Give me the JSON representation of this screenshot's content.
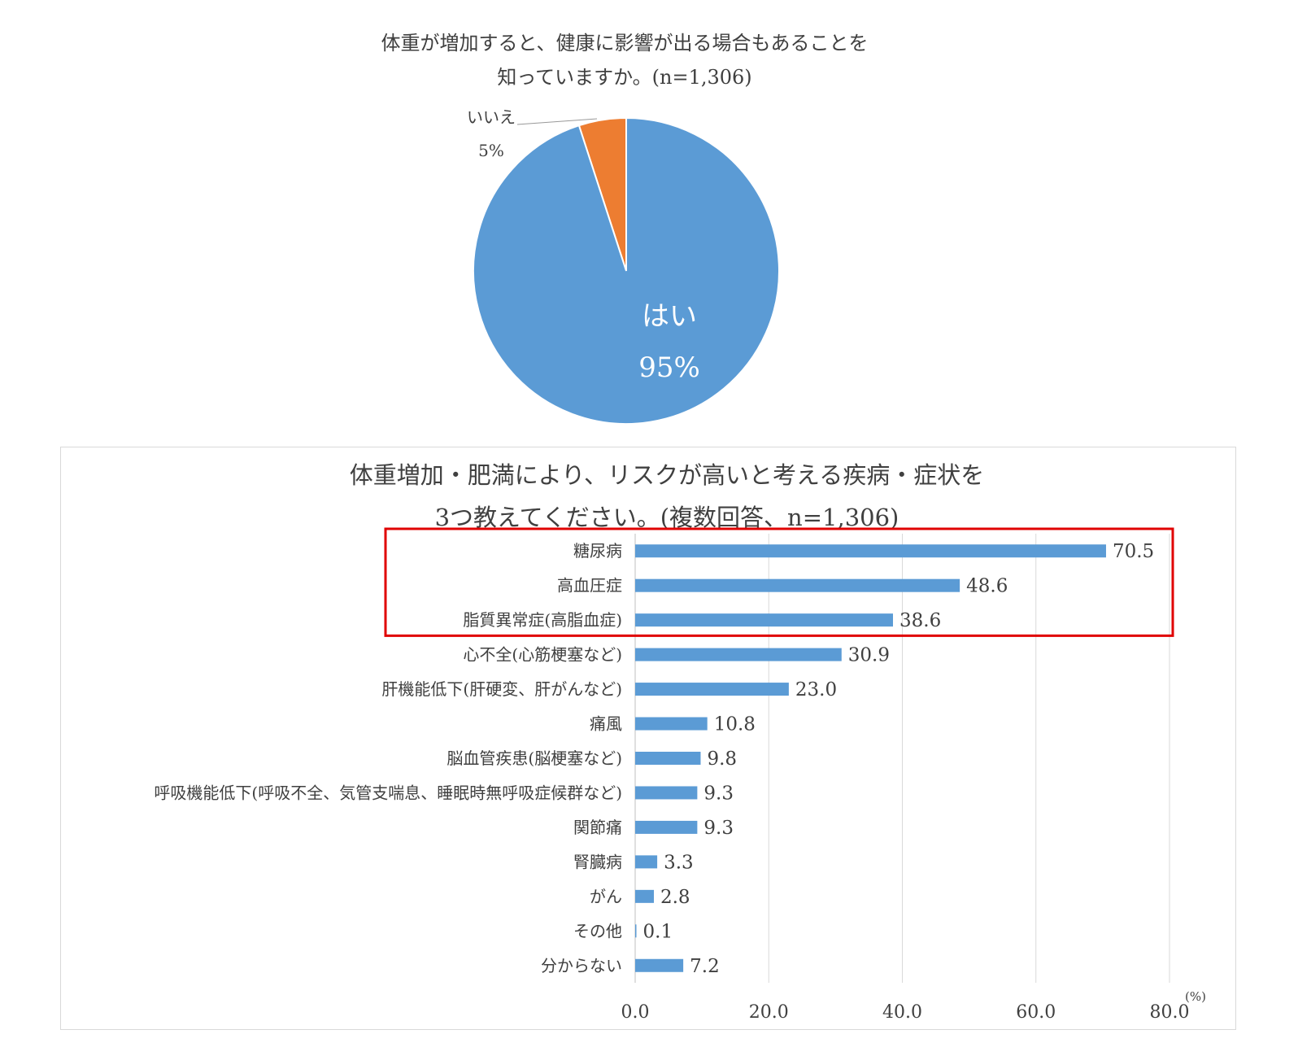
{
  "chart_data": [
    {
      "type": "pie",
      "title": [
        "体重が増加すると、健康に影響が出る場合もあることを",
        "知っていますか。(n=1,306)"
      ],
      "slices": [
        {
          "label": "はい",
          "value": 95,
          "value_label": "95%",
          "color": "#5b9bd5"
        },
        {
          "label": "いいえ",
          "value": 5,
          "value_label": "5%",
          "color": "#ed7d31"
        }
      ]
    },
    {
      "type": "bar",
      "orientation": "horizontal",
      "title": [
        "体重増加・肥満により、リスクが高いと考える疾病・症状を",
        "3つ教えてください。(複数回答、n=1,306)"
      ],
      "categories": [
        "糖尿病",
        "高血圧症",
        "脂質異常症(高脂血症)",
        "心不全(心筋梗塞など)",
        "肝機能低下(肝硬変、肝がんなど)",
        "痛風",
        "脳血管疾患(脳梗塞など)",
        "呼吸機能低下(呼吸不全、気管支喘息、睡眠時無呼吸症候群など)",
        "関節痛",
        "腎臓病",
        "がん",
        "その他",
        "分からない"
      ],
      "values": [
        70.5,
        48.6,
        38.6,
        30.9,
        23.0,
        10.8,
        9.8,
        9.3,
        9.3,
        3.3,
        2.8,
        0.1,
        7.2
      ],
      "value_labels": [
        "70.5",
        "48.6",
        "38.6",
        "30.9",
        "23.0",
        "10.8",
        "9.8",
        "9.3",
        "9.3",
        "3.3",
        "2.8",
        "0.1",
        "7.2"
      ],
      "xlim": [
        0,
        80
      ],
      "ticks": [
        "0.0",
        "20.0",
        "40.0",
        "60.0",
        "80.0"
      ],
      "unit": "(%)",
      "bar_color": "#5b9bd5",
      "highlight": {
        "rows": [
          0,
          1,
          2
        ],
        "color": "#e00000"
      },
      "grid": "vertical"
    }
  ]
}
